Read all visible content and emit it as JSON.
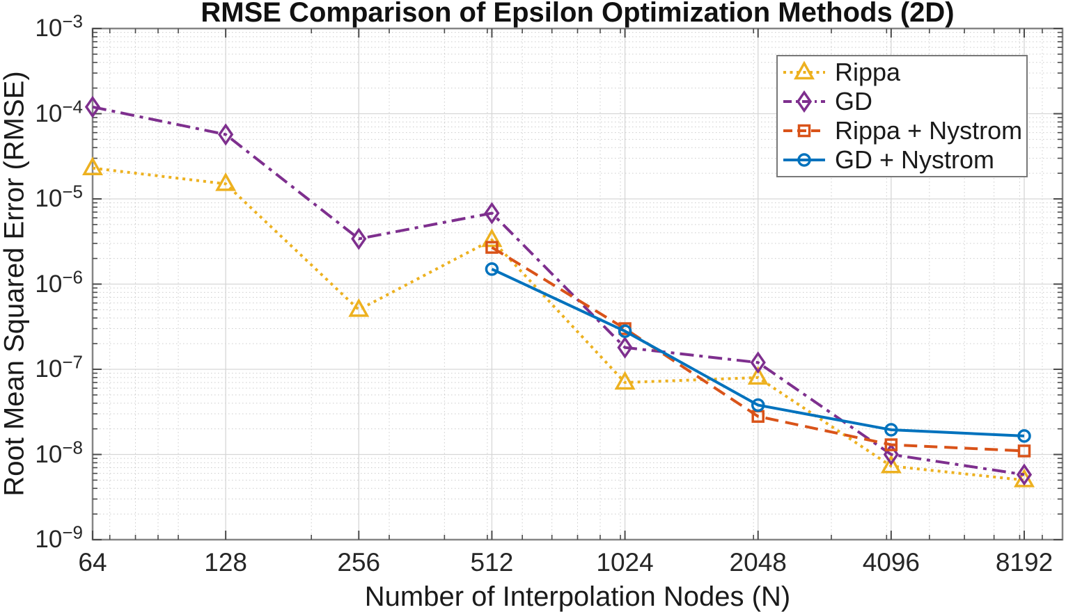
{
  "chart_data": {
    "type": "line",
    "title": "RMSE Comparison of Epsilon Optimization Methods (2D)",
    "xlabel": "Number of Interpolation Nodes (N)",
    "ylabel": "Root Mean Squared Error (RMSE)",
    "x_scale": "log2",
    "y_scale": "log10",
    "xlim": [
      64,
      10000
    ],
    "ylim": [
      1e-09,
      0.001
    ],
    "x_ticks": [
      64,
      128,
      256,
      512,
      1024,
      2048,
      4096,
      8192
    ],
    "y_tick_base": "10",
    "y_tick_exponents": [
      -3,
      -4,
      -5,
      -6,
      -7,
      -8,
      -9
    ],
    "grid": true,
    "minor_grid": true,
    "legend_position": "northeast-inside",
    "colors": {
      "axis_box": "#858585",
      "tick": "#4a4a4a",
      "major_grid": "#d6d6d6",
      "minor_grid": "#cccccc",
      "legend_border": "#787878",
      "text": "#262626"
    },
    "series": [
      {
        "name": "Rippa",
        "color": "#EDB120",
        "line_style": "dotted",
        "marker": "triangle",
        "x": [
          64,
          128,
          256,
          512,
          1024,
          2048,
          4096,
          8192
        ],
        "y": [
          2.3e-05,
          1.5e-05,
          5e-07,
          3.3e-06,
          7e-08,
          8e-08,
          7.3e-09,
          5e-09
        ]
      },
      {
        "name": "GD",
        "color": "#7E2F8E",
        "line_style": "dashdot",
        "marker": "diamond",
        "x": [
          64,
          128,
          256,
          512,
          1024,
          2048,
          4096,
          8192
        ],
        "y": [
          0.00012,
          5.7e-05,
          3.4e-06,
          6.8e-06,
          1.8e-07,
          1.2e-07,
          1e-08,
          5.8e-09
        ]
      },
      {
        "name": "Rippa + Nystrom",
        "color": "#D95319",
        "line_style": "dashed",
        "marker": "square",
        "x": [
          512,
          1024,
          2048,
          4096,
          8192
        ],
        "y": [
          2.7e-06,
          3e-07,
          2.8e-08,
          1.3e-08,
          1.1e-08
        ]
      },
      {
        "name": "GD + Nystrom",
        "color": "#0072BD",
        "line_style": "solid",
        "marker": "circle",
        "x": [
          512,
          1024,
          2048,
          4096,
          8192
        ],
        "y": [
          1.5e-06,
          2.8e-07,
          3.8e-08,
          1.95e-08,
          1.65e-08
        ]
      }
    ]
  }
}
